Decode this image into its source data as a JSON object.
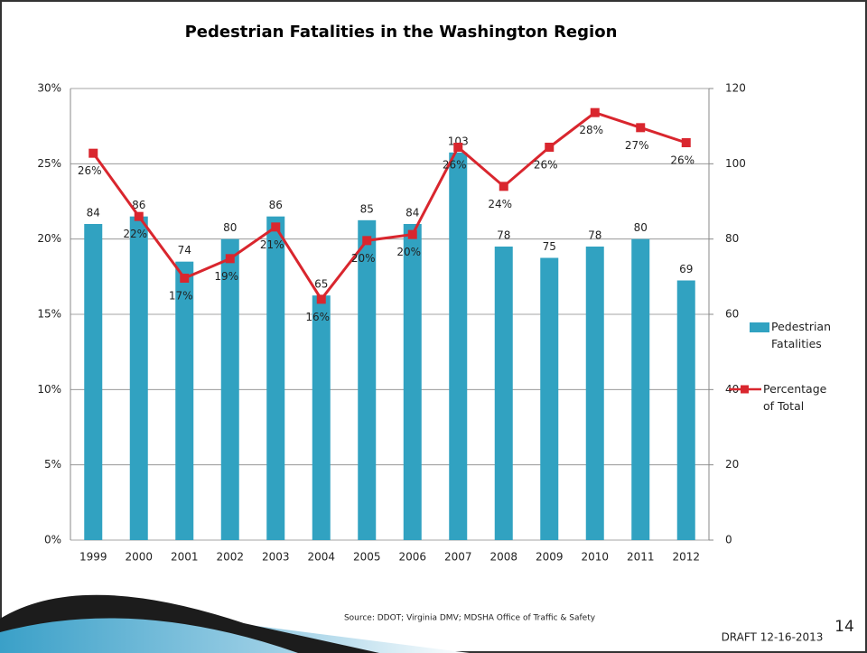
{
  "chart_data": {
    "type": "bar-line",
    "title": "Pedestrian Fatalities in the Washington Region",
    "categories": [
      "1999",
      "2000",
      "2001",
      "2002",
      "2003",
      "2004",
      "2005",
      "2006",
      "2007",
      "2008",
      "2009",
      "2010",
      "2011",
      "2012"
    ],
    "series": [
      {
        "name": "Pedestrian Fatalities",
        "type": "bar",
        "axis": "y2",
        "color": "#31a2c1",
        "values": [
          84,
          86,
          74,
          80,
          86,
          65,
          85,
          84,
          103,
          78,
          75,
          78,
          80,
          69
        ]
      },
      {
        "name": "Percentage of Total",
        "type": "line",
        "axis": "y",
        "color": "#d9262e",
        "values": [
          25.7,
          21.5,
          17.4,
          18.7,
          20.8,
          16.0,
          19.9,
          20.3,
          26.1,
          23.5,
          26.1,
          28.4,
          27.4,
          26.4
        ],
        "value_labels": [
          "26%",
          "22%",
          "17%",
          "19%",
          "21%",
          "16%",
          "20%",
          "20%",
          "26%",
          "24%",
          "26%",
          "28%",
          "27%",
          "26%"
        ]
      }
    ],
    "ylim": [
      0,
      30
    ],
    "yticks": [
      {
        "value": 0,
        "label": "0%"
      },
      {
        "value": 5,
        "label": "5%"
      },
      {
        "value": 10,
        "label": "10%"
      },
      {
        "value": 15,
        "label": "15%"
      },
      {
        "value": 20,
        "label": "20%"
      },
      {
        "value": 25,
        "label": "25%"
      },
      {
        "value": 30,
        "label": "30%"
      }
    ],
    "y2lim": [
      0,
      120
    ],
    "y2ticks": [
      0,
      20,
      40,
      60,
      80,
      100,
      120
    ],
    "grid": true,
    "legend": "right",
    "source": "Source: DDOT; Virginia DMV;  MDSHA Office of Traffic & Safety",
    "footer": "DRAFT 12-16-2013",
    "page_number": "14"
  }
}
